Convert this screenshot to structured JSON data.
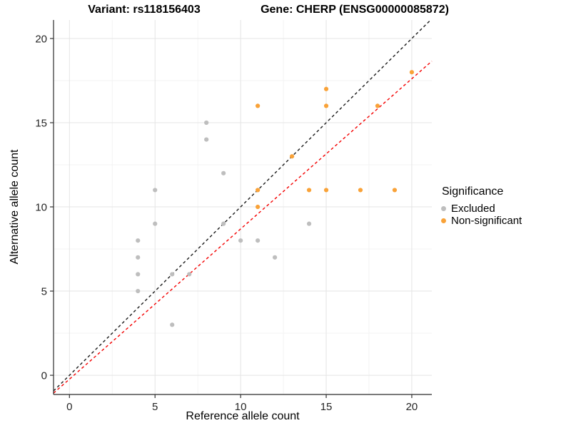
{
  "titles": {
    "left": "Variant: rs118156403",
    "right": "Gene: CHERP (ENSG00000085872)"
  },
  "chart_data": {
    "type": "scatter",
    "xlabel": "Reference allele count",
    "ylabel": "Alternative allele count",
    "xlim": [
      -0.93,
      21.17
    ],
    "ylim": [
      -1.14,
      21.1
    ],
    "ticks": [
      0,
      5,
      10,
      15,
      20
    ],
    "minor_ticks": [
      2.5,
      7.5,
      12.5,
      17.5
    ],
    "grid": true,
    "legend": {
      "title": "Significance",
      "position": "right",
      "entries": [
        {
          "label": "Excluded",
          "color": "#BEBEBE"
        },
        {
          "label": "Non-significant",
          "color": "#F9A238"
        }
      ]
    },
    "series": [
      {
        "name": "Excluded",
        "color": "#BEBEBE",
        "points": [
          [
            4,
            5
          ],
          [
            4,
            6
          ],
          [
            4,
            7
          ],
          [
            4,
            8
          ],
          [
            5,
            9
          ],
          [
            5,
            11
          ],
          [
            6,
            3
          ],
          [
            6,
            6
          ],
          [
            7,
            6
          ],
          [
            8,
            14
          ],
          [
            8,
            15
          ],
          [
            9,
            9
          ],
          [
            9,
            12
          ],
          [
            10,
            8
          ],
          [
            11,
            8
          ],
          [
            12,
            7
          ],
          [
            14,
            9
          ]
        ]
      },
      {
        "name": "Non-significant",
        "color": "#F9A238",
        "points": [
          [
            11,
            10
          ],
          [
            11,
            11
          ],
          [
            11,
            16
          ],
          [
            13,
            13
          ],
          [
            14,
            11
          ],
          [
            15,
            11
          ],
          [
            15,
            16
          ],
          [
            15,
            17
          ],
          [
            17,
            11
          ],
          [
            18,
            16
          ],
          [
            19,
            11
          ],
          [
            20,
            18
          ]
        ]
      }
    ],
    "lines": [
      {
        "name": "identity",
        "slope": 1,
        "intercept": 0,
        "color": "#1A1A1A",
        "dash": "dashed"
      },
      {
        "name": "fit",
        "slope": 0.892,
        "intercept": -0.23,
        "color": "#F40000",
        "dash": "dashed"
      }
    ],
    "colors": {
      "axis": "#2B2B2B",
      "tick": "#333333",
      "tick_label": "#262626",
      "grid_major": "#E4E4E4",
      "grid_minor": "#F2F2F2"
    }
  }
}
